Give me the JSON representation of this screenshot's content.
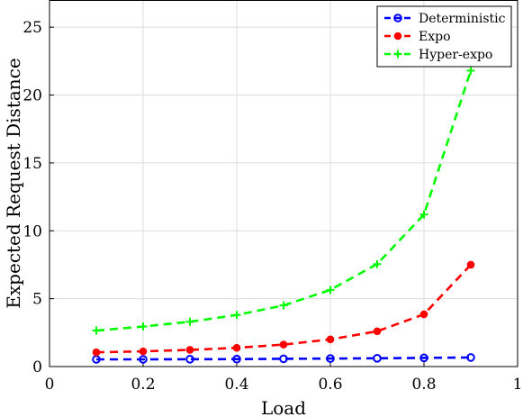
{
  "chart_data": {
    "type": "line",
    "title": "",
    "xlabel": "Load",
    "ylabel": "Expected Request Distance",
    "xlim": [
      0,
      1
    ],
    "ylim": [
      0,
      27
    ],
    "xticks": [
      0,
      0.2,
      0.4,
      0.6,
      0.8,
      1
    ],
    "xtick_labels": [
      "0",
      "0.2",
      "0.4",
      "0.6",
      "0.8",
      "1"
    ],
    "yticks": [
      0,
      5,
      10,
      15,
      20,
      25
    ],
    "ytick_labels": [
      "0",
      "5",
      "10",
      "15",
      "20",
      "25"
    ],
    "grid": true,
    "legend_position": "top-right",
    "x": [
      0.1,
      0.2,
      0.3,
      0.4,
      0.5,
      0.6,
      0.7,
      0.8,
      0.9
    ],
    "series": [
      {
        "name": "Deterministic",
        "color": "#0000ff",
        "marker": "circle-open",
        "linestyle": "dashed",
        "values": [
          0.53,
          0.53,
          0.54,
          0.55,
          0.57,
          0.59,
          0.61,
          0.64,
          0.67
        ]
      },
      {
        "name": "Expo",
        "color": "#ff0000",
        "marker": "dot",
        "linestyle": "dashed",
        "values": [
          1.05,
          1.12,
          1.23,
          1.38,
          1.62,
          2.0,
          2.6,
          3.85,
          7.5
        ]
      },
      {
        "name": "Hyper-expo",
        "color": "#00ff00",
        "marker": "plus",
        "linestyle": "dashed",
        "values": [
          2.65,
          2.95,
          3.3,
          3.8,
          4.5,
          5.65,
          7.55,
          11.2,
          21.8
        ]
      }
    ]
  }
}
